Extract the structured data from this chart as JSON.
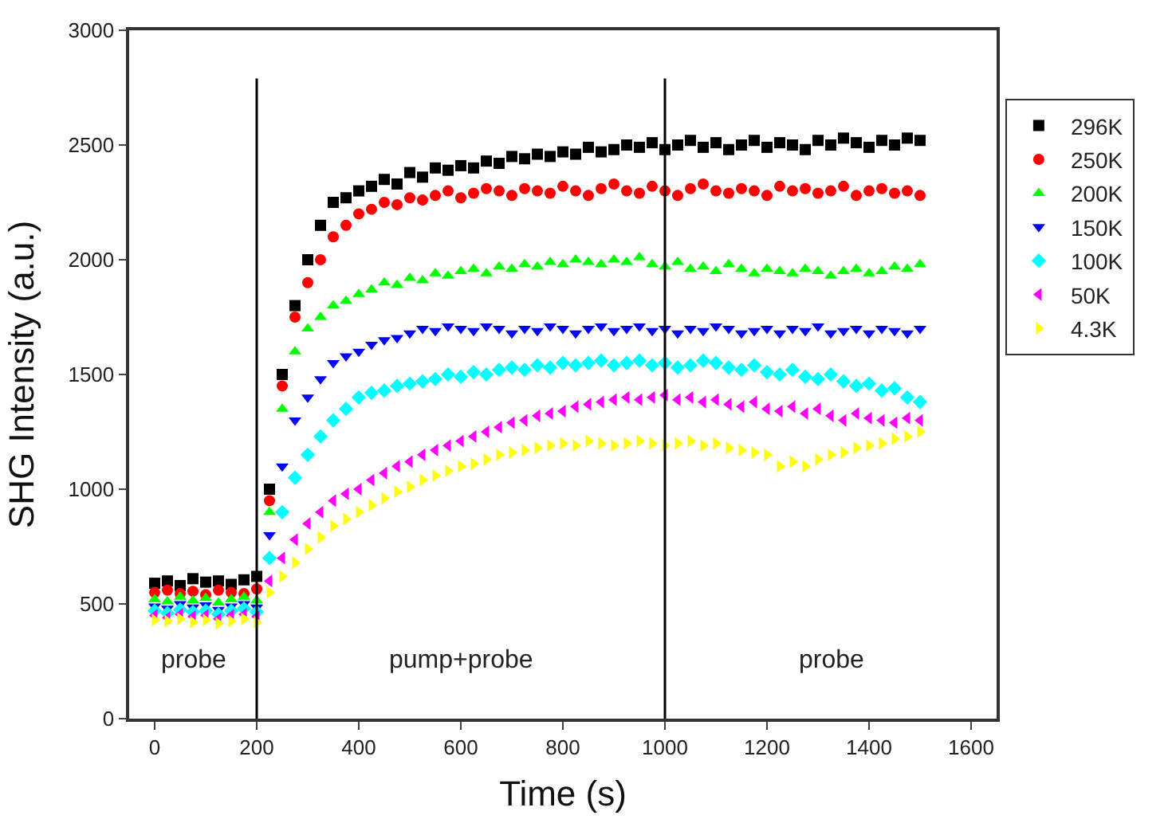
{
  "chart_data": {
    "type": "scatter",
    "xlabel": "Time (s)",
    "ylabel": "SHG Intensity (a.u.)",
    "x": [
      0,
      25,
      50,
      75,
      100,
      125,
      150,
      175,
      200,
      225,
      250,
      275,
      300,
      325,
      350,
      375,
      400,
      425,
      450,
      475,
      500,
      525,
      550,
      575,
      600,
      625,
      650,
      675,
      700,
      725,
      750,
      775,
      800,
      825,
      850,
      875,
      900,
      925,
      950,
      975,
      1000,
      1025,
      1050,
      1075,
      1100,
      1125,
      1150,
      1175,
      1200,
      1225,
      1250,
      1275,
      1300,
      1325,
      1350,
      1375,
      1400,
      1425,
      1450,
      1475,
      1500
    ],
    "xlim": [
      -50,
      1650
    ],
    "xticks": [
      0,
      200,
      400,
      600,
      800,
      1000,
      1200,
      1400,
      1600
    ],
    "ylim": [
      0,
      3000
    ],
    "yticks": [
      0,
      500,
      1000,
      1500,
      2000,
      2500,
      3000
    ],
    "legend": "right",
    "series": [
      {
        "name": "296K",
        "color": "#000000",
        "marker": "square",
        "values": [
          590,
          600,
          580,
          610,
          595,
          600,
          585,
          605,
          620,
          1000,
          1500,
          1800,
          2000,
          2150,
          2250,
          2270,
          2300,
          2320,
          2350,
          2330,
          2380,
          2360,
          2400,
          2390,
          2410,
          2400,
          2430,
          2420,
          2450,
          2440,
          2460,
          2450,
          2470,
          2460,
          2490,
          2470,
          2480,
          2500,
          2490,
          2510,
          2480,
          2500,
          2520,
          2490,
          2510,
          2480,
          2500,
          2520,
          2490,
          2510,
          2500,
          2480,
          2520,
          2500,
          2530,
          2510,
          2490,
          2520,
          2500,
          2530,
          2520
        ]
      },
      {
        "name": "250K",
        "color": "#ff0000",
        "marker": "circle",
        "values": [
          550,
          560,
          545,
          555,
          540,
          560,
          550,
          545,
          565,
          950,
          1450,
          1750,
          1900,
          2000,
          2100,
          2150,
          2200,
          2220,
          2250,
          2240,
          2270,
          2260,
          2280,
          2300,
          2270,
          2290,
          2310,
          2300,
          2280,
          2310,
          2300,
          2290,
          2320,
          2300,
          2280,
          2310,
          2330,
          2300,
          2290,
          2320,
          2300,
          2280,
          2310,
          2330,
          2300,
          2290,
          2310,
          2300,
          2280,
          2320,
          2300,
          2310,
          2290,
          2300,
          2320,
          2280,
          2300,
          2310,
          2290,
          2300,
          2280
        ]
      },
      {
        "name": "200K",
        "color": "#00ff00",
        "marker": "triangle",
        "values": [
          520,
          510,
          530,
          515,
          525,
          505,
          520,
          530,
          515,
          900,
          1350,
          1600,
          1700,
          1750,
          1800,
          1820,
          1850,
          1870,
          1900,
          1890,
          1920,
          1910,
          1940,
          1930,
          1950,
          1960,
          1940,
          1970,
          1960,
          1980,
          1970,
          1990,
          1980,
          2000,
          1990,
          1980,
          2000,
          1990,
          2010,
          1980,
          1970,
          1990,
          1960,
          1970,
          1950,
          1980,
          1960,
          1940,
          1960,
          1950,
          1940,
          1960,
          1950,
          1930,
          1950,
          1960,
          1940,
          1950,
          1970,
          1960,
          1980
        ]
      },
      {
        "name": "150K",
        "color": "#0000ff",
        "marker": "triangle-down",
        "values": [
          490,
          480,
          500,
          485,
          495,
          475,
          490,
          500,
          485,
          800,
          1100,
          1300,
          1400,
          1480,
          1550,
          1580,
          1600,
          1630,
          1650,
          1660,
          1680,
          1700,
          1690,
          1710,
          1700,
          1690,
          1710,
          1700,
          1680,
          1700,
          1690,
          1710,
          1700,
          1680,
          1700,
          1710,
          1690,
          1700,
          1710,
          1690,
          1700,
          1680,
          1700,
          1690,
          1710,
          1700,
          1680,
          1690,
          1700,
          1680,
          1700,
          1690,
          1710,
          1680,
          1690,
          1700,
          1680,
          1700,
          1690,
          1680,
          1700
        ]
      },
      {
        "name": "100K",
        "color": "#00ffff",
        "marker": "diamond",
        "values": [
          470,
          460,
          475,
          465,
          470,
          455,
          470,
          480,
          465,
          700,
          900,
          1050,
          1150,
          1230,
          1300,
          1350,
          1400,
          1420,
          1430,
          1450,
          1460,
          1470,
          1480,
          1500,
          1490,
          1510,
          1500,
          1520,
          1530,
          1520,
          1540,
          1530,
          1550,
          1540,
          1550,
          1560,
          1540,
          1550,
          1560,
          1540,
          1550,
          1530,
          1540,
          1560,
          1550,
          1530,
          1520,
          1540,
          1510,
          1500,
          1520,
          1490,
          1480,
          1500,
          1470,
          1450,
          1460,
          1430,
          1440,
          1400,
          1380
        ]
      },
      {
        "name": "50K",
        "color": "#ff00ff",
        "marker": "triangle-left",
        "values": [
          450,
          440,
          455,
          445,
          450,
          435,
          450,
          455,
          445,
          600,
          700,
          780,
          850,
          900,
          950,
          980,
          1000,
          1040,
          1070,
          1100,
          1120,
          1150,
          1170,
          1190,
          1210,
          1230,
          1250,
          1270,
          1290,
          1300,
          1320,
          1330,
          1340,
          1360,
          1370,
          1380,
          1390,
          1400,
          1390,
          1400,
          1410,
          1390,
          1400,
          1380,
          1390,
          1370,
          1360,
          1380,
          1350,
          1340,
          1360,
          1330,
          1350,
          1320,
          1300,
          1330,
          1310,
          1300,
          1290,
          1310,
          1300
        ]
      },
      {
        "name": "4.3K",
        "color": "#ffff00",
        "marker": "triangle-right",
        "values": [
          430,
          425,
          435,
          420,
          430,
          415,
          425,
          435,
          420,
          550,
          620,
          680,
          740,
          790,
          840,
          870,
          900,
          930,
          960,
          990,
          1010,
          1040,
          1060,
          1080,
          1100,
          1110,
          1130,
          1150,
          1160,
          1170,
          1180,
          1190,
          1200,
          1190,
          1210,
          1200,
          1190,
          1200,
          1210,
          1200,
          1190,
          1200,
          1210,
          1190,
          1200,
          1180,
          1170,
          1160,
          1150,
          1100,
          1120,
          1100,
          1130,
          1150,
          1160,
          1180,
          1190,
          1200,
          1220,
          1230,
          1250
        ]
      }
    ],
    "ref_lines": [
      {
        "axis": "x",
        "value": 200,
        "color": "#000000"
      },
      {
        "axis": "x",
        "value": 1000,
        "color": "#000000"
      }
    ],
    "annotations": [
      "probe",
      "pump+probe",
      "probe"
    ]
  }
}
